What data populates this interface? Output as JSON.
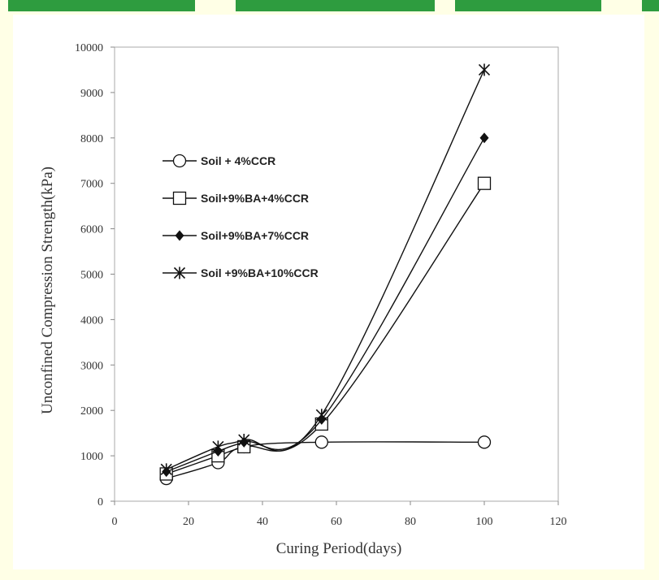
{
  "chart_data": {
    "type": "line",
    "title": "",
    "xlabel": "Curing Period(days)",
    "ylabel": "Unconfined Compression Strength(kPa)",
    "xlim": [
      0,
      120
    ],
    "ylim": [
      0,
      10000
    ],
    "xticks": [
      0,
      20,
      40,
      60,
      80,
      100,
      120
    ],
    "yticks": [
      0,
      1000,
      2000,
      3000,
      4000,
      5000,
      6000,
      7000,
      8000,
      9000,
      10000
    ],
    "grid": false,
    "legend_position": "upper-left",
    "series": [
      {
        "name": "Soil + 4%CCR",
        "marker": "circle-open",
        "x": [
          14,
          28,
          35,
          56,
          100
        ],
        "y": [
          500,
          850,
          1200,
          1300,
          1300
        ]
      },
      {
        "name": "Soil+9%BA+4%CCR",
        "marker": "square-open",
        "x": [
          14,
          28,
          35,
          56,
          100
        ],
        "y": [
          600,
          1000,
          1200,
          1700,
          7000
        ]
      },
      {
        "name": "Soil+9%BA+7%CCR",
        "marker": "diamond-filled",
        "x": [
          14,
          28,
          35,
          56,
          100
        ],
        "y": [
          650,
          1100,
          1300,
          1800,
          8000
        ]
      },
      {
        "name": "Soil +9%BA+10%CCR",
        "marker": "star",
        "x": [
          14,
          28,
          35,
          56,
          100
        ],
        "y": [
          700,
          1200,
          1350,
          1900,
          9500
        ]
      }
    ]
  }
}
